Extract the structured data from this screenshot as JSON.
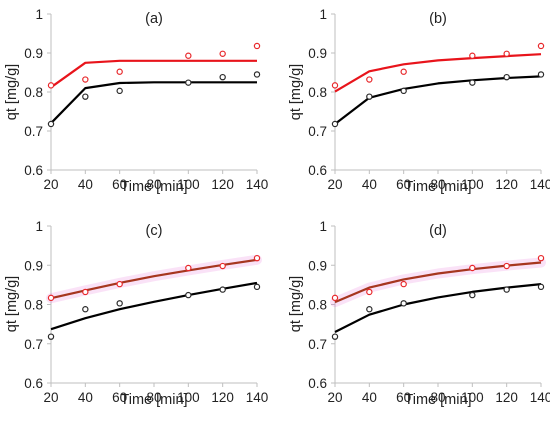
{
  "figure": {
    "background": "#ffffff",
    "axis_color": "#bfbfbf",
    "text_color": "#222222"
  },
  "chart_data": [
    {
      "type": "line",
      "panel_label": "(a)",
      "xlabel": "Time  [min]",
      "ylabel": "qt  [mg/g]",
      "xlim": [
        20,
        140
      ],
      "ylim": [
        0.6,
        1.0
      ],
      "xticks": [
        20,
        40,
        60,
        80,
        100,
        120,
        140
      ],
      "yticks": [
        0.6,
        0.7,
        0.8,
        0.9,
        1.0
      ],
      "ytick_labels": [
        "0.6",
        "0.7",
        "0.8",
        "0.9",
        "1"
      ],
      "grid": false,
      "series": [
        {
          "kind": "points",
          "color": "#e8282b",
          "x": [
            20,
            40,
            60,
            100,
            120,
            140
          ],
          "y": [
            0.817,
            0.832,
            0.852,
            0.893,
            0.898,
            0.918
          ]
        },
        {
          "kind": "points",
          "color": "#2a2a2a",
          "x": [
            20,
            40,
            60,
            100,
            120,
            140
          ],
          "y": [
            0.718,
            0.788,
            0.803,
            0.824,
            0.838,
            0.845
          ]
        },
        {
          "kind": "curve",
          "color": "#e8141b",
          "x": [
            20,
            40,
            60,
            80,
            100,
            120,
            140
          ],
          "y": [
            0.812,
            0.875,
            0.88,
            0.88,
            0.88,
            0.88,
            0.88
          ]
        },
        {
          "kind": "curve",
          "color": "#000000",
          "x": [
            20,
            40,
            60,
            80,
            100,
            120,
            140
          ],
          "y": [
            0.72,
            0.81,
            0.823,
            0.825,
            0.825,
            0.825,
            0.825
          ]
        }
      ]
    },
    {
      "type": "line",
      "panel_label": "(b)",
      "xlabel": "Time  [min]",
      "ylabel": "qt  [mg/g]",
      "xlim": [
        20,
        140
      ],
      "ylim": [
        0.6,
        1.0
      ],
      "xticks": [
        20,
        40,
        60,
        80,
        100,
        120,
        140
      ],
      "yticks": [
        0.6,
        0.7,
        0.8,
        0.9,
        1.0
      ],
      "ytick_labels": [
        "0.6",
        "0.7",
        "0.8",
        "0.9",
        "1"
      ],
      "grid": false,
      "series": [
        {
          "kind": "points",
          "color": "#e8282b",
          "x": [
            20,
            40,
            60,
            100,
            120,
            140
          ],
          "y": [
            0.817,
            0.832,
            0.852,
            0.893,
            0.898,
            0.918
          ]
        },
        {
          "kind": "points",
          "color": "#2a2a2a",
          "x": [
            20,
            40,
            60,
            100,
            120,
            140
          ],
          "y": [
            0.718,
            0.788,
            0.803,
            0.824,
            0.838,
            0.845
          ]
        },
        {
          "kind": "curve",
          "color": "#e8141b",
          "x": [
            20,
            40,
            60,
            80,
            100,
            120,
            140
          ],
          "y": [
            0.801,
            0.853,
            0.871,
            0.881,
            0.887,
            0.892,
            0.897
          ]
        },
        {
          "kind": "curve",
          "color": "#000000",
          "x": [
            20,
            40,
            60,
            80,
            100,
            120,
            140
          ],
          "y": [
            0.718,
            0.785,
            0.808,
            0.822,
            0.83,
            0.836,
            0.84
          ]
        }
      ]
    },
    {
      "type": "line",
      "panel_label": "(c)",
      "xlabel": "Time  [min]",
      "ylabel": "qt  [mg/g]",
      "xlim": [
        20,
        140
      ],
      "ylim": [
        0.6,
        1.0
      ],
      "xticks": [
        20,
        40,
        60,
        80,
        100,
        120,
        140
      ],
      "yticks": [
        0.6,
        0.7,
        0.8,
        0.9,
        1.0
      ],
      "ytick_labels": [
        "0.6",
        "0.7",
        "0.8",
        "0.9",
        "1"
      ],
      "grid": false,
      "series": [
        {
          "kind": "band",
          "color": "#e04bd0",
          "x": [
            20,
            40,
            60,
            80,
            100,
            120,
            140
          ],
          "y": [
            0.816,
            0.836,
            0.855,
            0.872,
            0.887,
            0.901,
            0.914
          ]
        },
        {
          "kind": "points",
          "color": "#e8282b",
          "x": [
            20,
            40,
            60,
            100,
            120,
            140
          ],
          "y": [
            0.817,
            0.832,
            0.852,
            0.893,
            0.898,
            0.918
          ]
        },
        {
          "kind": "points",
          "color": "#2a2a2a",
          "x": [
            20,
            40,
            60,
            100,
            120,
            140
          ],
          "y": [
            0.718,
            0.788,
            0.803,
            0.824,
            0.838,
            0.845
          ]
        },
        {
          "kind": "curve",
          "color": "#a6361f",
          "x": [
            20,
            40,
            60,
            80,
            100,
            120,
            140
          ],
          "y": [
            0.816,
            0.836,
            0.855,
            0.872,
            0.887,
            0.901,
            0.914
          ]
        },
        {
          "kind": "curve",
          "color": "#000000",
          "x": [
            20,
            40,
            60,
            80,
            100,
            120,
            140
          ],
          "y": [
            0.737,
            0.765,
            0.788,
            0.807,
            0.824,
            0.84,
            0.855
          ]
        }
      ]
    },
    {
      "type": "line",
      "panel_label": "(d)",
      "xlabel": "Time  [min]",
      "ylabel": "qt  [mg/g]",
      "xlim": [
        20,
        140
      ],
      "ylim": [
        0.6,
        1.0
      ],
      "xticks": [
        20,
        40,
        60,
        80,
        100,
        120,
        140
      ],
      "yticks": [
        0.6,
        0.7,
        0.8,
        0.9,
        1.0
      ],
      "ytick_labels": [
        "0.6",
        "0.7",
        "0.8",
        "0.9",
        "1"
      ],
      "grid": false,
      "series": [
        {
          "kind": "band",
          "color": "#e04bd0",
          "x": [
            20,
            40,
            60,
            80,
            100,
            120,
            140
          ],
          "y": [
            0.806,
            0.843,
            0.864,
            0.879,
            0.89,
            0.899,
            0.907
          ]
        },
        {
          "kind": "points",
          "color": "#e8282b",
          "x": [
            20,
            40,
            60,
            100,
            120,
            140
          ],
          "y": [
            0.817,
            0.832,
            0.852,
            0.893,
            0.898,
            0.918
          ]
        },
        {
          "kind": "points",
          "color": "#2a2a2a",
          "x": [
            20,
            40,
            60,
            100,
            120,
            140
          ],
          "y": [
            0.718,
            0.788,
            0.803,
            0.824,
            0.838,
            0.845
          ]
        },
        {
          "kind": "curve",
          "color": "#a6361f",
          "x": [
            20,
            40,
            60,
            80,
            100,
            120,
            140
          ],
          "y": [
            0.806,
            0.843,
            0.864,
            0.879,
            0.89,
            0.899,
            0.907
          ]
        },
        {
          "kind": "curve",
          "color": "#000000",
          "x": [
            20,
            40,
            60,
            80,
            100,
            120,
            140
          ],
          "y": [
            0.73,
            0.774,
            0.8,
            0.818,
            0.832,
            0.843,
            0.852
          ]
        }
      ]
    }
  ]
}
